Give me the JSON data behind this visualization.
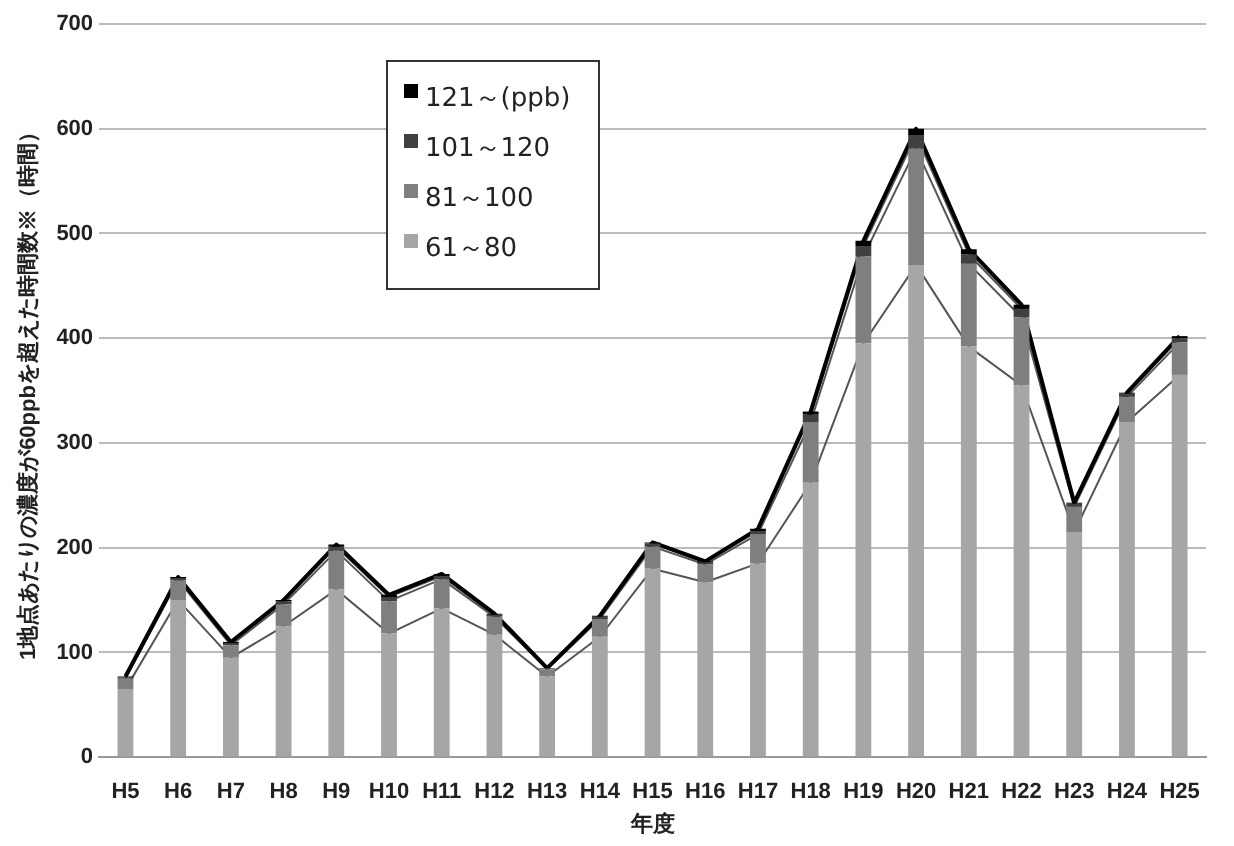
{
  "chart_data": {
    "type": "bar",
    "stacked": true,
    "xlabel": "年度",
    "ylabel": "1地点あたりの濃度が60ppbを超えた時間数※（時間）",
    "categories": [
      "H5",
      "H6",
      "H7",
      "H8",
      "H9",
      "H10",
      "H11",
      "H12",
      "H13",
      "H14",
      "H15",
      "H16",
      "H17",
      "H18",
      "H19",
      "H20",
      "H21",
      "H22",
      "H23",
      "H24",
      "H25"
    ],
    "series": [
      {
        "name": "61～80",
        "color": "#a6a6a6",
        "values": [
          65,
          150,
          95,
          125,
          160,
          118,
          142,
          117,
          77,
          115,
          180,
          167,
          185,
          262,
          395,
          470,
          392,
          355,
          215,
          320,
          365
        ]
      },
      {
        "name": "81～100",
        "color": "#7f7f7f",
        "values": [
          10,
          19,
          12,
          21,
          37,
          31,
          28,
          17,
          7,
          17,
          21,
          17,
          28,
          58,
          83,
          111,
          79,
          65,
          24,
          24,
          31
        ]
      },
      {
        "name": "101～120",
        "color": "#404040",
        "values": [
          1,
          2,
          2,
          3,
          4,
          4,
          3,
          2,
          1,
          2,
          3,
          2,
          3,
          7,
          10,
          13,
          9,
          8,
          3,
          3,
          4
        ]
      },
      {
        "name": "121～(ppb)",
        "color": "#000000",
        "values": [
          1,
          1,
          1,
          1,
          2,
          2,
          2,
          1,
          0,
          1,
          1,
          1,
          2,
          3,
          5,
          6,
          5,
          4,
          1,
          1,
          2
        ]
      }
    ],
    "ylim": [
      0,
      700
    ],
    "yticks": [
      0,
      100,
      200,
      300,
      400,
      500,
      600,
      700
    ],
    "grid": "y",
    "legend": "top left"
  }
}
